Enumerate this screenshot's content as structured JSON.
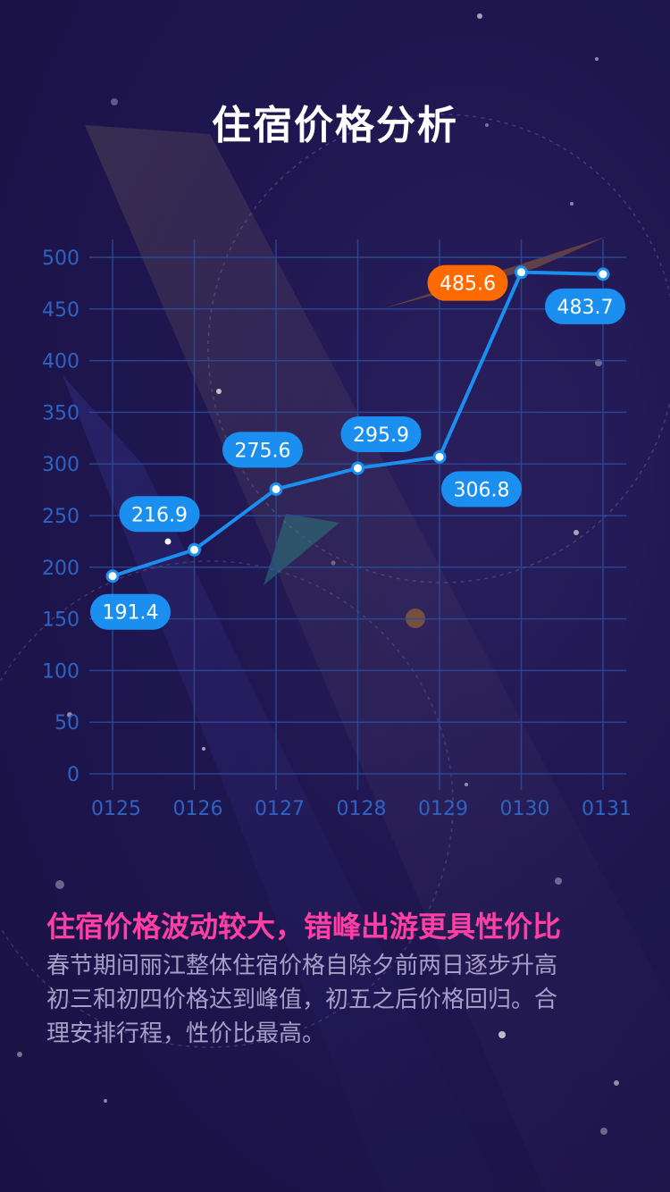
{
  "page": {
    "title": "住宿价格分析",
    "headline": "住宿价格波动较大，错峰出游更具性价比",
    "body_lines": [
      "春节期间丽江整体住宿价格自除夕前两日逐步升高",
      "初三和初四价格达到峰值，初五之后价格回归。合",
      "理安排行程，性价比最高。"
    ]
  },
  "colors": {
    "line": "#1b8ff0",
    "label_bg": "#1b8ff0",
    "peak_label_bg": "#ff6a00",
    "grid": "#2b4c9a",
    "axis_text": "#2d63c2",
    "headline": "#ff3fa4"
  },
  "chart_data": {
    "type": "line",
    "categories": [
      "0125",
      "0126",
      "0127",
      "0128",
      "0129",
      "0130",
      "0131"
    ],
    "values": [
      191.4,
      216.9,
      275.6,
      295.9,
      306.8,
      485.6,
      483.7
    ],
    "yticks": [
      0,
      50,
      100,
      150,
      200,
      250,
      300,
      350,
      400,
      450,
      500
    ],
    "ylim": [
      0,
      500
    ],
    "grid": true,
    "highlight_index": 5
  }
}
